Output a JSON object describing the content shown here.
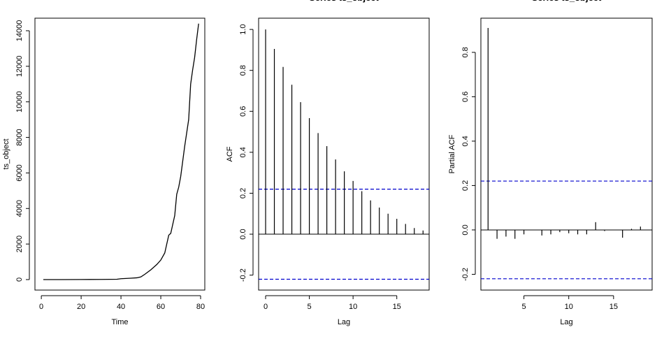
{
  "chart_data": [
    {
      "type": "line",
      "xlabel": "Time",
      "ylabel": "ts_object",
      "color": "#000000",
      "x": [
        1,
        10,
        20,
        30,
        38,
        40,
        45,
        48,
        50,
        52,
        55,
        58,
        60,
        62,
        63,
        64,
        65,
        66,
        67,
        68,
        69,
        70,
        72,
        74,
        75,
        76,
        77,
        78,
        79
      ],
      "values": [
        0,
        0,
        5,
        10,
        20,
        50,
        80,
        100,
        150,
        300,
        550,
        850,
        1100,
        1500,
        2000,
        2500,
        2600,
        3100,
        3600,
        4800,
        5200,
        5800,
        7500,
        9000,
        11000,
        11800,
        12500,
        13500,
        14400
      ],
      "xlim": [
        -3.2,
        82.1
      ],
      "ylim": [
        -590,
        14707
      ],
      "xticks": [
        0,
        20,
        40,
        60,
        80
      ],
      "yticks": [
        0,
        2000,
        4000,
        6000,
        8000,
        10000,
        12000,
        14000
      ]
    },
    {
      "type": "stem",
      "title": "Series  ts_object",
      "xlabel": "Lag",
      "ylabel": "ACF",
      "color": "#000000",
      "x": [
        0,
        1,
        2,
        3,
        4,
        5,
        6,
        7,
        8,
        9,
        10,
        11,
        12,
        13,
        14,
        15,
        16,
        17,
        18
      ],
      "values": [
        1.0,
        0.905,
        0.817,
        0.73,
        0.645,
        0.567,
        0.494,
        0.43,
        0.365,
        0.307,
        0.26,
        0.21,
        0.165,
        0.13,
        0.1,
        0.075,
        0.05,
        0.03,
        0.018
      ],
      "hlines": [
        0.22,
        -0.22
      ],
      "hline_color": "#0000cd",
      "xlim": [
        -0.8,
        18.7
      ],
      "ylim": [
        -0.273,
        1.055
      ],
      "xticks": [
        0,
        5,
        10,
        15
      ],
      "yticks": [
        -0.2,
        {
          "value": 0,
          "label": "0.0"
        },
        0.2,
        0.4,
        0.6,
        0.8,
        {
          "value": 1,
          "label": "1.0"
        }
      ]
    },
    {
      "type": "stem",
      "title": "Series  ts_object",
      "xlabel": "Lag",
      "ylabel": "Partial ACF",
      "color": "#000000",
      "x": [
        1,
        2,
        3,
        4,
        5,
        6,
        7,
        8,
        9,
        10,
        11,
        12,
        13,
        14,
        15,
        16,
        17,
        18
      ],
      "values": [
        0.91,
        -0.04,
        -0.03,
        -0.04,
        -0.02,
        0.0,
        -0.025,
        -0.02,
        -0.01,
        -0.015,
        -0.02,
        -0.02,
        0.035,
        -0.005,
        0.0,
        -0.035,
        0.005,
        0.015
      ],
      "hlines": [
        0.22,
        -0.22
      ],
      "hline_color": "#0000cd",
      "xlim": [
        0.2,
        19.3
      ],
      "ylim": [
        -0.271,
        0.954
      ],
      "xticks": [
        5,
        10,
        15
      ],
      "yticks": [
        -0.2,
        {
          "value": 0,
          "label": "0.0"
        },
        0.2,
        0.4,
        0.6,
        0.8
      ]
    }
  ]
}
